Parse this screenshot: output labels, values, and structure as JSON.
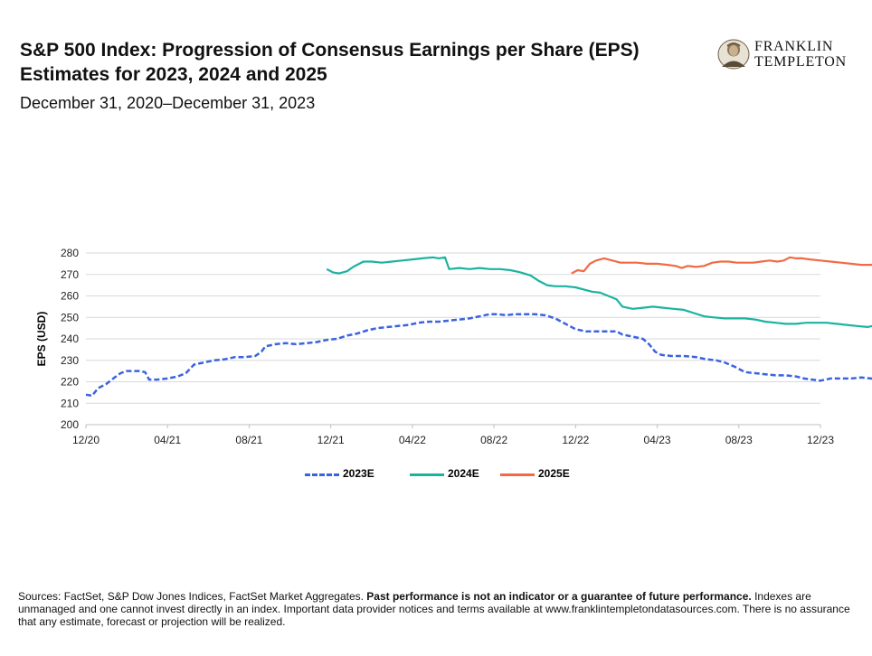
{
  "title": "S&P 500 Index: Progression of Consensus Earnings per Share (EPS) Estimates for 2023, 2024 and 2025",
  "subtitle": "December 31, 2020–December 31, 2023",
  "logo": {
    "line1": "FRANKLIN",
    "line2": "TEMPLETON",
    "icon": "franklin-portrait-icon"
  },
  "footnote": {
    "part1": "Sources: FactSet, S&P Dow Jones Indices, FactSet Market Aggregates. ",
    "bold": "Past performance is not an indicator or a guarantee of future performance.",
    "part2": " Indexes are unmanaged and one cannot invest directly in an index. Important data provider notices and terms available at www.franklintempletondatasources.com. There is no assurance that any estimate, forecast or projection will be realized."
  },
  "chart_data": {
    "type": "line",
    "title": "S&P 500 Index: Progression of Consensus Earnings per Share (EPS) Estimates for 2023, 2024 and 2025",
    "xlabel": "",
    "ylabel": "EPS (USD)",
    "ylim": [
      200,
      280
    ],
    "yticks": [
      200,
      210,
      220,
      230,
      240,
      250,
      260,
      270,
      280
    ],
    "xlim": [
      "12/20",
      "12/23"
    ],
    "x_tick_labels": [
      "12/20",
      "04/21",
      "08/21",
      "12/21",
      "04/22",
      "08/22",
      "12/22",
      "04/23",
      "08/23",
      "12/23"
    ],
    "x_unit": "months since 12/20",
    "grid": "horizontal",
    "legend_position": "bottom",
    "series": [
      {
        "name": "2023E",
        "color": "#3B63E0",
        "style": "dashed",
        "points": [
          [
            0,
            214
          ],
          [
            0.3,
            213.5
          ],
          [
            0.6,
            217
          ],
          [
            1.0,
            219
          ],
          [
            1.4,
            222
          ],
          [
            1.7,
            224
          ],
          [
            2.0,
            225
          ],
          [
            2.6,
            225
          ],
          [
            2.9,
            224.5
          ],
          [
            3.1,
            221
          ],
          [
            3.5,
            221
          ],
          [
            4.0,
            221.5
          ],
          [
            4.5,
            222.5
          ],
          [
            4.9,
            224
          ],
          [
            5.3,
            228
          ],
          [
            5.8,
            229
          ],
          [
            6.3,
            230
          ],
          [
            6.8,
            230.5
          ],
          [
            7.3,
            231.5
          ],
          [
            7.8,
            231.5
          ],
          [
            8.3,
            232
          ],
          [
            8.6,
            234
          ],
          [
            8.8,
            236.5
          ],
          [
            9.3,
            237.5
          ],
          [
            9.8,
            238
          ],
          [
            10.3,
            237.5
          ],
          [
            10.8,
            238
          ],
          [
            11.3,
            238.5
          ],
          [
            11.8,
            239.5
          ],
          [
            12.3,
            240
          ],
          [
            12.8,
            241.5
          ],
          [
            13.3,
            242.5
          ],
          [
            13.8,
            244
          ],
          [
            14.3,
            245
          ],
          [
            14.8,
            245.5
          ],
          [
            15.3,
            246
          ],
          [
            15.8,
            246.5
          ],
          [
            16.3,
            247.5
          ],
          [
            16.8,
            248
          ],
          [
            17.3,
            248
          ],
          [
            17.8,
            248.5
          ],
          [
            18.3,
            249
          ],
          [
            18.8,
            249.5
          ],
          [
            19.3,
            250.5
          ],
          [
            19.8,
            251.5
          ],
          [
            20.2,
            251.5
          ],
          [
            20.6,
            251
          ],
          [
            21.0,
            251.5
          ],
          [
            21.5,
            251.5
          ],
          [
            22.0,
            251.5
          ],
          [
            22.5,
            251
          ],
          [
            23.0,
            249.5
          ],
          [
            23.5,
            247
          ],
          [
            24.0,
            244.5
          ],
          [
            24.5,
            243.5
          ],
          [
            25.0,
            243.5
          ],
          [
            25.5,
            243.5
          ],
          [
            26.0,
            243.5
          ],
          [
            26.3,
            242
          ],
          [
            26.8,
            241
          ],
          [
            27.3,
            240
          ],
          [
            27.6,
            237.5
          ],
          [
            27.9,
            234
          ],
          [
            28.2,
            232.5
          ],
          [
            28.7,
            232
          ],
          [
            29.3,
            232
          ],
          [
            29.9,
            231.5
          ],
          [
            30.4,
            230.5
          ],
          [
            30.9,
            230
          ],
          [
            31.3,
            229
          ],
          [
            31.8,
            227
          ],
          [
            32.3,
            224.5
          ],
          [
            32.8,
            224
          ],
          [
            33.3,
            223.5
          ],
          [
            33.8,
            223
          ],
          [
            34.3,
            223
          ],
          [
            34.8,
            222.5
          ],
          [
            35.2,
            221.5
          ],
          [
            35.6,
            221
          ],
          [
            36.0,
            220.5
          ],
          [
            36.5,
            221.5
          ],
          [
            37.0,
            221.5
          ],
          [
            37.5,
            221.5
          ],
          [
            38.0,
            222
          ],
          [
            38.5,
            221.5
          ],
          [
            39.0,
            221
          ],
          [
            39.5,
            220.5
          ],
          [
            40.0,
            220
          ],
          [
            40.5,
            219.5
          ],
          [
            40.9,
            218.5
          ],
          [
            41.2,
            219
          ],
          [
            41.6,
            221
          ],
          [
            42.0,
            221.5
          ],
          [
            42.5,
            222
          ],
          [
            43.0,
            222
          ],
          [
            43.5,
            221.5
          ],
          [
            44.0,
            221.5
          ],
          [
            44.5,
            221.5
          ],
          [
            45.0,
            220.5
          ],
          [
            45.5,
            220.5
          ],
          [
            46.0,
            221
          ],
          [
            46.5,
            221
          ],
          [
            47.0,
            221
          ],
          [
            47.5,
            220.5
          ],
          [
            47.8,
            219
          ],
          [
            48.0,
            219
          ]
        ]
      },
      {
        "name": "2024E",
        "color": "#1BB3A0",
        "style": "solid",
        "points": [
          [
            11.8,
            272.5
          ],
          [
            12.1,
            271
          ],
          [
            12.4,
            270.5
          ],
          [
            12.8,
            271.5
          ],
          [
            13.1,
            273.5
          ],
          [
            13.4,
            275
          ],
          [
            13.6,
            276
          ],
          [
            14.0,
            276
          ],
          [
            14.5,
            275.5
          ],
          [
            15.0,
            276
          ],
          [
            15.5,
            276.5
          ],
          [
            16.0,
            277
          ],
          [
            16.5,
            277.5
          ],
          [
            17.0,
            278
          ],
          [
            17.3,
            277.5
          ],
          [
            17.6,
            278
          ],
          [
            17.8,
            272.5
          ],
          [
            18.3,
            273
          ],
          [
            18.8,
            272.5
          ],
          [
            19.3,
            273
          ],
          [
            19.8,
            272.5
          ],
          [
            20.3,
            272.5
          ],
          [
            20.8,
            272
          ],
          [
            21.3,
            271
          ],
          [
            21.8,
            269.5
          ],
          [
            22.2,
            267
          ],
          [
            22.6,
            265
          ],
          [
            23.0,
            264.5
          ],
          [
            23.5,
            264.5
          ],
          [
            24.0,
            264
          ],
          [
            24.4,
            263
          ],
          [
            24.8,
            262
          ],
          [
            25.2,
            261.5
          ],
          [
            25.6,
            260
          ],
          [
            26.0,
            258.5
          ],
          [
            26.3,
            255
          ],
          [
            26.8,
            254
          ],
          [
            27.3,
            254.5
          ],
          [
            27.8,
            255
          ],
          [
            28.3,
            254.5
          ],
          [
            28.8,
            254
          ],
          [
            29.3,
            253.5
          ],
          [
            29.8,
            252
          ],
          [
            30.3,
            250.5
          ],
          [
            30.8,
            250
          ],
          [
            31.3,
            249.5
          ],
          [
            31.8,
            249.5
          ],
          [
            32.3,
            249.5
          ],
          [
            32.8,
            249
          ],
          [
            33.3,
            248
          ],
          [
            33.8,
            247.5
          ],
          [
            34.3,
            247
          ],
          [
            34.8,
            247
          ],
          [
            35.3,
            247.5
          ],
          [
            35.8,
            247.5
          ],
          [
            36.3,
            247.5
          ],
          [
            36.8,
            247
          ],
          [
            37.3,
            246.5
          ],
          [
            37.8,
            246
          ],
          [
            38.3,
            245.5
          ],
          [
            38.8,
            246.5
          ],
          [
            39.3,
            247
          ],
          [
            39.8,
            247.5
          ],
          [
            40.3,
            248
          ],
          [
            40.8,
            248.5
          ],
          [
            41.3,
            248
          ],
          [
            41.8,
            248
          ],
          [
            42.3,
            247.5
          ],
          [
            42.8,
            247
          ],
          [
            43.3,
            246.5
          ],
          [
            43.8,
            246
          ],
          [
            44.3,
            246
          ],
          [
            44.8,
            245.5
          ],
          [
            45.3,
            246.5
          ],
          [
            45.8,
            246.5
          ],
          [
            46.3,
            246
          ],
          [
            46.6,
            245
          ],
          [
            47.0,
            244.5
          ],
          [
            47.5,
            244.5
          ],
          [
            48.0,
            244.5
          ]
        ]
      },
      {
        "name": "2025E",
        "color": "#F26A43",
        "style": "solid",
        "points": [
          [
            23.8,
            270.5
          ],
          [
            24.1,
            272
          ],
          [
            24.4,
            271.5
          ],
          [
            24.7,
            275
          ],
          [
            25.0,
            276.5
          ],
          [
            25.4,
            277.5
          ],
          [
            25.8,
            276.5
          ],
          [
            26.2,
            275.5
          ],
          [
            26.6,
            275.5
          ],
          [
            27.0,
            275.5
          ],
          [
            27.5,
            275
          ],
          [
            28.0,
            275
          ],
          [
            28.5,
            274.5
          ],
          [
            28.9,
            274
          ],
          [
            29.2,
            273
          ],
          [
            29.5,
            274
          ],
          [
            29.9,
            273.5
          ],
          [
            30.3,
            274
          ],
          [
            30.7,
            275.5
          ],
          [
            31.1,
            276
          ],
          [
            31.5,
            276
          ],
          [
            31.9,
            275.5
          ],
          [
            32.3,
            275.5
          ],
          [
            32.7,
            275.5
          ],
          [
            33.1,
            276
          ],
          [
            33.5,
            276.5
          ],
          [
            33.9,
            276
          ],
          [
            34.2,
            276.5
          ],
          [
            34.5,
            278
          ],
          [
            34.8,
            277.5
          ],
          [
            35.1,
            277.5
          ],
          [
            35.5,
            277
          ],
          [
            36.0,
            276.5
          ],
          [
            36.5,
            276
          ],
          [
            37.0,
            275.5
          ],
          [
            37.5,
            275
          ],
          [
            38.0,
            274.5
          ],
          [
            38.5,
            274.5
          ],
          [
            38.9,
            276
          ],
          [
            39.3,
            275.5
          ],
          [
            39.7,
            275.5
          ],
          [
            40.1,
            275
          ],
          [
            40.6,
            275
          ],
          [
            41.0,
            275
          ],
          [
            41.4,
            275.5
          ]
        ]
      }
    ]
  }
}
